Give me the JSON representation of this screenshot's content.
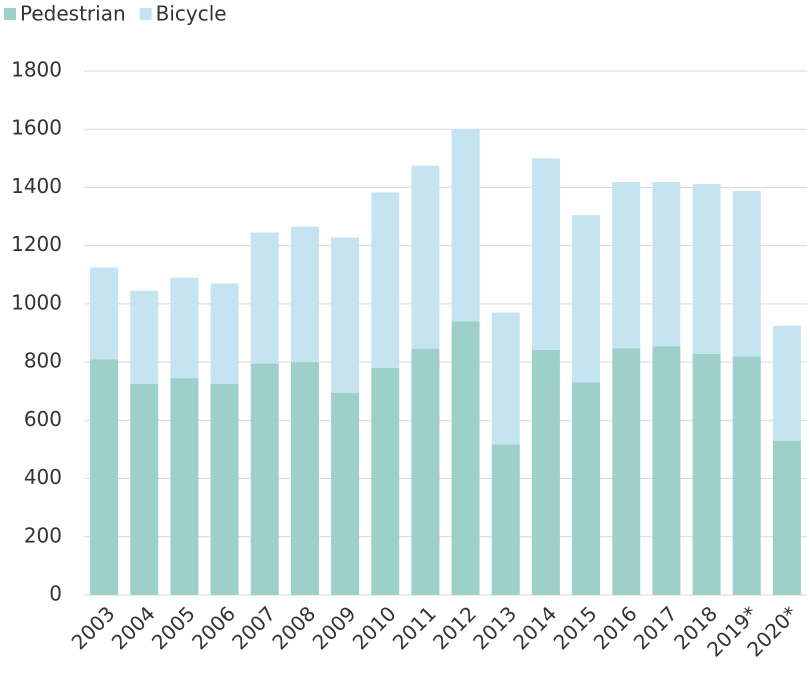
{
  "chart_data": {
    "type": "stacked-bar",
    "categories": [
      "2003",
      "2004",
      "2005",
      "2006",
      "2007",
      "2008",
      "2009",
      "2010",
      "2011",
      "2012",
      "2013",
      "2014",
      "2015",
      "2016",
      "2017",
      "2018",
      "2019*",
      "2020*"
    ],
    "series": [
      {
        "name": "Pedestrian",
        "color": "#9dd0c8",
        "values": [
          810,
          725,
          745,
          725,
          795,
          800,
          695,
          780,
          845,
          940,
          518,
          842,
          730,
          848,
          855,
          828,
          820,
          530
        ]
      },
      {
        "name": "Bicycle",
        "color": "#c5e3f0",
        "values": [
          315,
          320,
          345,
          345,
          450,
          465,
          533,
          603,
          630,
          660,
          452,
          658,
          575,
          570,
          563,
          584,
          568,
          395
        ]
      }
    ],
    "ylim": [
      0,
      1800
    ],
    "yticks": [
      0,
      200,
      400,
      600,
      800,
      1000,
      1200,
      1400,
      1600,
      1800
    ],
    "grid": true,
    "legend": "top-left"
  }
}
